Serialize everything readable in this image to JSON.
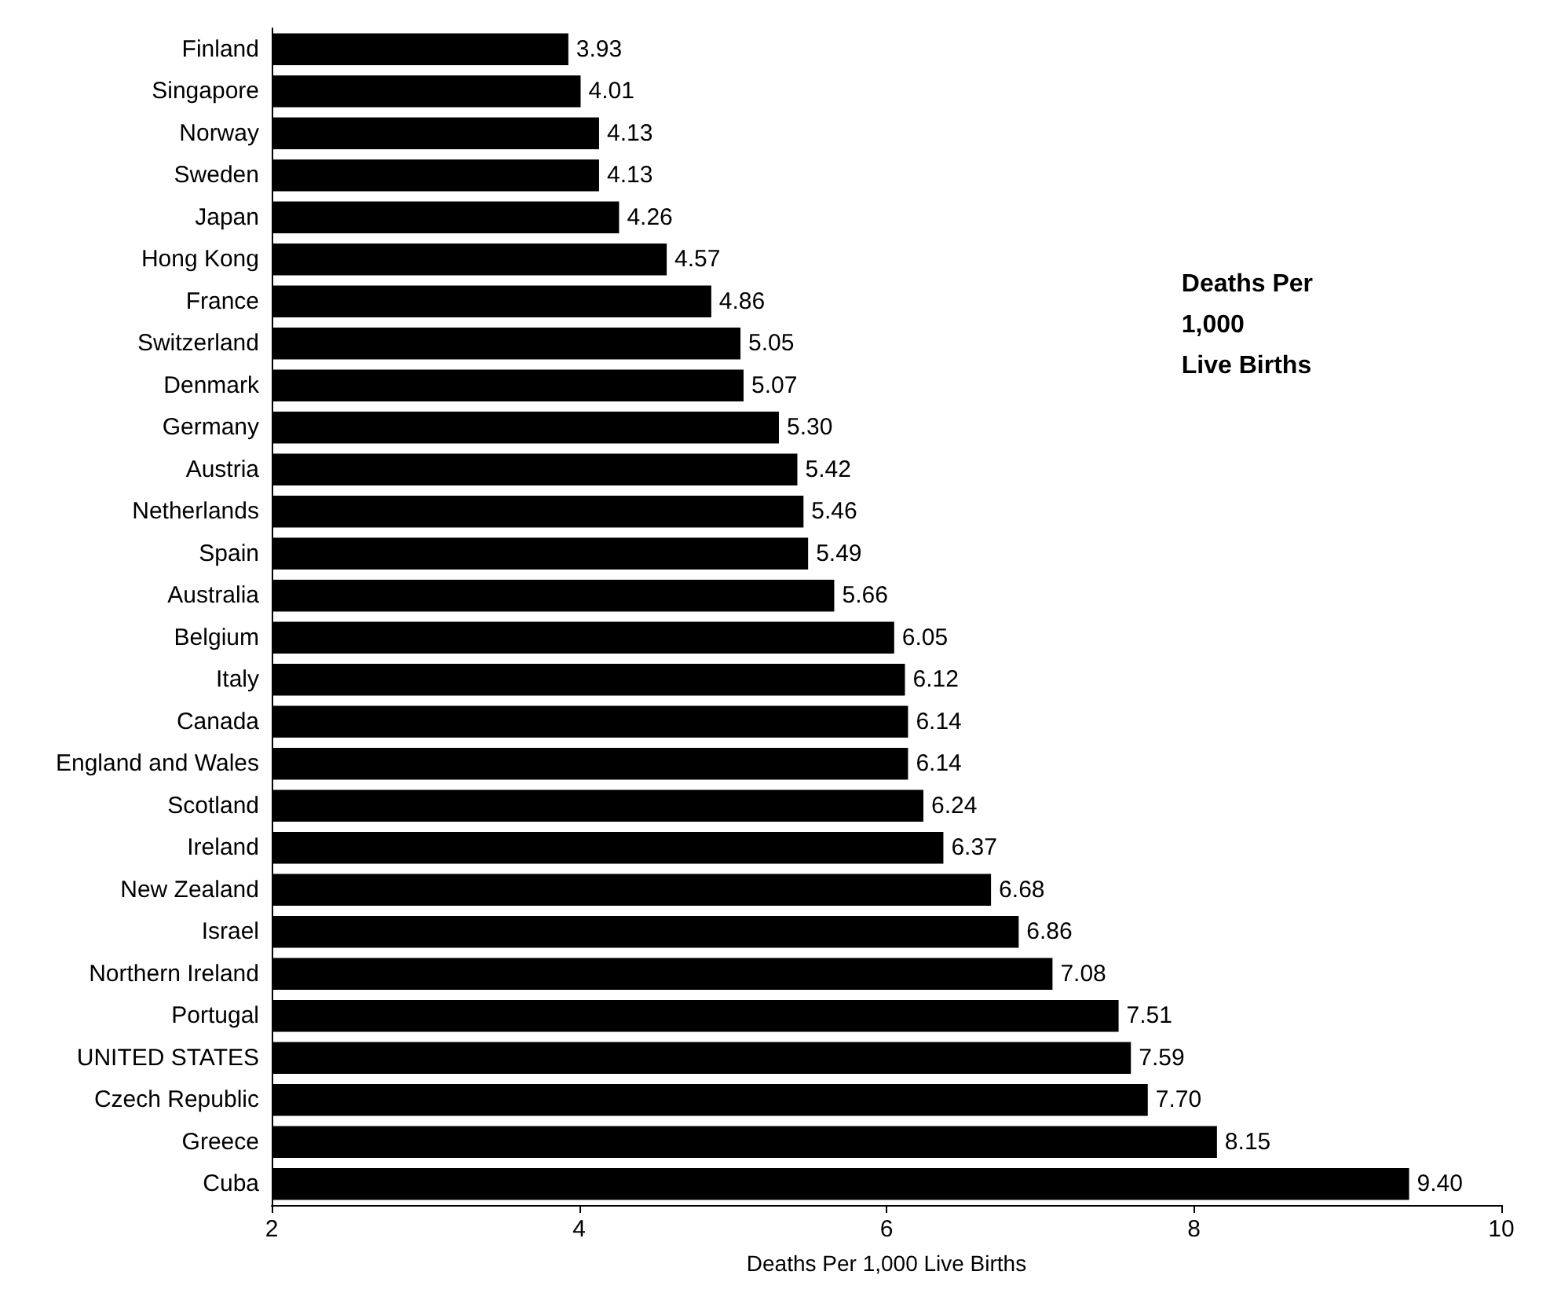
{
  "chart_data": {
    "type": "bar",
    "orientation": "horizontal",
    "categories": [
      "Finland",
      "Singapore",
      "Norway",
      "Sweden",
      "Japan",
      "Hong Kong",
      "France",
      "Switzerland",
      "Denmark",
      "Germany",
      "Austria",
      "Netherlands",
      "Spain",
      "Australia",
      "Belgium",
      "Italy",
      "Canada",
      "England and Wales",
      "Scotland",
      "Ireland",
      "New Zealand",
      "Israel",
      "Northern Ireland",
      "Portugal",
      "UNITED STATES",
      "Czech Republic",
      "Greece",
      "Cuba"
    ],
    "values": [
      3.93,
      4.01,
      4.13,
      4.13,
      4.26,
      4.57,
      4.86,
      5.05,
      5.07,
      5.3,
      5.42,
      5.46,
      5.49,
      5.66,
      6.05,
      6.12,
      6.14,
      6.14,
      6.24,
      6.37,
      6.68,
      6.86,
      7.08,
      7.51,
      7.59,
      7.7,
      8.15,
      9.4
    ],
    "value_labels": [
      "3.93",
      "4.01",
      "4.13",
      "4.13",
      "4.26",
      "4.57",
      "4.86",
      "5.05",
      "5.07",
      "5.30",
      "5.42",
      "5.46",
      "5.49",
      "5.66",
      "6.05",
      "6.12",
      "6.14",
      "6.14",
      "6.24",
      "6.37",
      "6.68",
      "6.86",
      "7.08",
      "7.51",
      "7.59",
      "7.70",
      "8.15",
      "9.40"
    ],
    "color": "#000000",
    "xlim": [
      2,
      10
    ],
    "xticks": [
      2,
      4,
      6,
      8,
      10
    ],
    "xlabel": "Deaths Per 1,000 Live Births",
    "annotations": [
      "Deaths Per 1,000 Live Births"
    ],
    "grid": false
  }
}
